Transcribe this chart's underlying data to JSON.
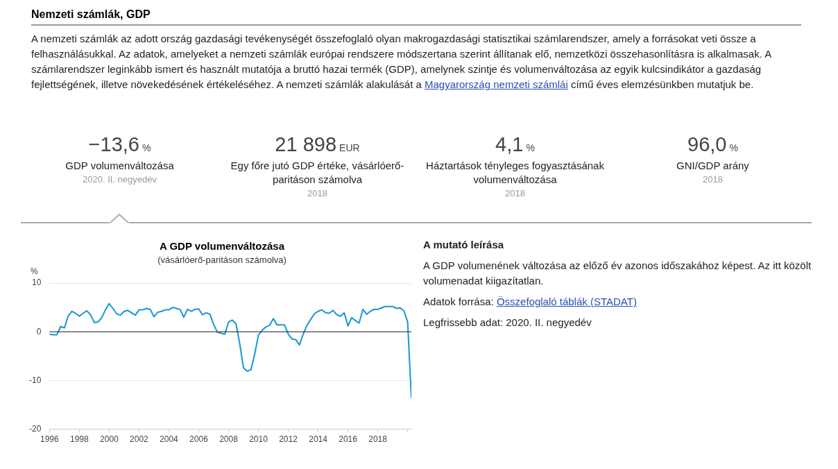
{
  "chart_data": [
    {
      "type": "other",
      "title": "Nemzeti számlák, GDP",
      "annotations": [
        "A nemzeti számlák az adott ország gazdasági tevékenységét összefoglaló olyan makrogazdasági statisztikai számlarendszer, amely a forrásokat veti össze a felhasználásukkal. Az adatok, amelyeket a nemzeti számlák európai rendszere módszertana szerint állítanak elő, nemzetközi összehasonlításra is alkalmasak. A számlarendszer leginkább ismert és használt mutatója a bruttó hazai termék (GDP), amelynek szintje és volumenváltozása az egyik kulcsindikátor a gazdaság fejlettségének, illetve növekedésének értékeléséhez. A nemzeti számlák alakulását a ",
        "Magyarország nemzeti számlái",
        " című éves elemzésünkben mutatjuk be."
      ]
    },
    {
      "type": "other",
      "annotations": [
        "−13,6",
        "%",
        "GDP volumenváltozása",
        "2020. II. negyedév",
        "21 898",
        "EUR",
        "Egy főre jutó GDP értéke, vásárlóerő-paritáson számolva",
        "2018",
        "4,1",
        "%",
        "Háztartások tényleges fogyasztásának volumenváltozása",
        "2018",
        "96,0",
        "%",
        "GNI/GDP arány",
        "2018"
      ]
    },
    {
      "type": "line",
      "title": "A GDP volumenváltozása",
      "subtitle": "(vásárlóerő-paritáson számolva)",
      "ylabel": "%",
      "x": [
        1996,
        1996.25,
        1996.5,
        1996.75,
        1997,
        1997.25,
        1997.5,
        1997.75,
        1998,
        1998.25,
        1998.5,
        1998.75,
        1999,
        1999.25,
        1999.5,
        1999.75,
        2000,
        2000.25,
        2000.5,
        2000.75,
        2001,
        2001.25,
        2001.5,
        2001.75,
        2002,
        2002.25,
        2002.5,
        2002.75,
        2003,
        2003.25,
        2003.5,
        2003.75,
        2004,
        2004.25,
        2004.5,
        2004.75,
        2005,
        2005.25,
        2005.5,
        2005.75,
        2006,
        2006.25,
        2006.5,
        2006.75,
        2007,
        2007.25,
        2007.5,
        2007.75,
        2008,
        2008.25,
        2008.5,
        2008.75,
        2009,
        2009.25,
        2009.5,
        2009.75,
        2010,
        2010.25,
        2010.5,
        2010.75,
        2011,
        2011.25,
        2011.5,
        2011.75,
        2012,
        2012.25,
        2012.5,
        2012.75,
        2013,
        2013.25,
        2013.5,
        2013.75,
        2014,
        2014.25,
        2014.5,
        2014.75,
        2015,
        2015.25,
        2015.5,
        2015.75,
        2016,
        2016.25,
        2016.5,
        2016.75,
        2017,
        2017.25,
        2017.5,
        2017.75,
        2018,
        2018.25,
        2018.5,
        2018.75,
        2019,
        2019.25,
        2019.5,
        2019.75,
        2020,
        2020.25
      ],
      "series": [
        {
          "color": "#1696d2",
          "values": [
            -0.5,
            -0.6,
            -0.6,
            1.1,
            0.8,
            3.2,
            4.2,
            3.8,
            3.2,
            3.8,
            4.3,
            3.5,
            1.9,
            2.0,
            2.9,
            4.5,
            5.8,
            4.8,
            3.7,
            3.4,
            4.2,
            4.4,
            3.9,
            3.4,
            4.5,
            4.5,
            4.8,
            4.6,
            3.1,
            4.0,
            4.2,
            4.5,
            4.5,
            5.0,
            4.8,
            4.6,
            3.0,
            4.6,
            4.2,
            4.6,
            4.7,
            3.5,
            3.9,
            3.6,
            1.5,
            -0.1,
            -0.3,
            -0.5,
            2.0,
            2.4,
            1.6,
            -2.5,
            -7.4,
            -8.1,
            -7.8,
            -4.6,
            -0.7,
            0.3,
            1.0,
            1.3,
            2.7,
            1.4,
            1.4,
            1.4,
            -0.5,
            -1.5,
            -1.6,
            -2.7,
            -0.5,
            1.3,
            2.5,
            3.7,
            4.2,
            4.5,
            3.9,
            3.8,
            4.4,
            3.5,
            3.2,
            3.9,
            1.2,
            2.9,
            2.3,
            1.8,
            4.6,
            3.6,
            4.2,
            4.6,
            4.6,
            4.9,
            5.2,
            5.2,
            5.2,
            4.8,
            4.9,
            4.3,
            2.0,
            -13.6
          ]
        }
      ],
      "xlim": [
        1996,
        2020.25
      ],
      "xticks": [
        1996,
        1998,
        2000,
        2002,
        2004,
        2006,
        2008,
        2010,
        2012,
        2014,
        2016,
        2018,
        {
          "value": 2020,
          "label": null
        }
      ],
      "ylim": [
        -20,
        10
      ],
      "yticks": [
        -20,
        -10,
        0,
        10
      ],
      "ref_lines": [
        {
          "axis": "y",
          "value": 0,
          "color": "#222222"
        }
      ],
      "grid": "y",
      "legend": false,
      "marker": "none",
      "line_style": "solid"
    },
    {
      "type": "other",
      "title": "A mutató leírása",
      "annotations": [
        "A GDP volumenének változása az előző év azonos időszakához képest. Az itt közölt volumenadat kiigazítatlan.",
        "Adatok forrása: ",
        "Összefoglaló táblák (STADAT)",
        "Legfrissebb adat: 2020. II. negyedév"
      ]
    }
  ]
}
